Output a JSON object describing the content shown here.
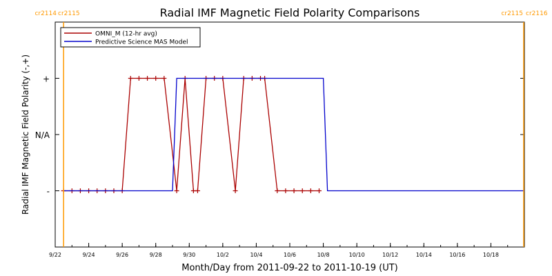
{
  "chart_data": {
    "type": "line",
    "title": "Radial IMF Magnetic Field Polarity Comparisons",
    "xlabel": "Month/Day from 2011-09-22 to 2011-10-19 (UT)",
    "ylabel": "Radial IMF Magnetic Field Polarity (-,+)",
    "x_start": "2011-09-22",
    "x_end": "2011-10-20",
    "y_categories": [
      "-",
      "N/A",
      "+"
    ],
    "ylim": [
      -2,
      2
    ],
    "y_ticks": [
      {
        "value": 1,
        "label": "+"
      },
      {
        "value": 0,
        "label": "N/A"
      },
      {
        "value": -1,
        "label": "-"
      }
    ],
    "x_ticks": [
      {
        "date": "2011-09-22",
        "label": "9/22"
      },
      {
        "date": "2011-09-24",
        "label": "9/24"
      },
      {
        "date": "2011-09-26",
        "label": "9/26"
      },
      {
        "date": "2011-09-28",
        "label": "9/28"
      },
      {
        "date": "2011-09-30",
        "label": "9/30"
      },
      {
        "date": "2011-10-02",
        "label": "10/2"
      },
      {
        "date": "2011-10-04",
        "label": "10/4"
      },
      {
        "date": "2011-10-06",
        "label": "10/6"
      },
      {
        "date": "2011-10-08",
        "label": "10/8"
      },
      {
        "date": "2011-10-10",
        "label": "10/10"
      },
      {
        "date": "2011-10-12",
        "label": "10/12"
      },
      {
        "date": "2011-10-14",
        "label": "10/14"
      },
      {
        "date": "2011-10-16",
        "label": "10/16"
      },
      {
        "date": "2011-10-18",
        "label": "10/18"
      }
    ],
    "carrington_markers": [
      {
        "date": "2011-09-22 12:00",
        "labels": [
          "cr2114",
          "cr2115"
        ],
        "side": "left"
      },
      {
        "date": "2011-10-20 00:00",
        "labels": [
          "cr2115",
          "cr2116"
        ],
        "side": "right"
      }
    ],
    "legend": {
      "placement": "top-left"
    },
    "series": [
      {
        "name": "OMNI_M (12-hr avg)",
        "color": "#aa0000",
        "markers": true,
        "points": [
          [
            "2011-09-22 12:00",
            -1
          ],
          [
            "2011-09-23 00:00",
            -1
          ],
          [
            "2011-09-23 12:00",
            -1
          ],
          [
            "2011-09-24 00:00",
            -1
          ],
          [
            "2011-09-24 12:00",
            -1
          ],
          [
            "2011-09-25 00:00",
            -1
          ],
          [
            "2011-09-25 12:00",
            -1
          ],
          [
            "2011-09-26 00:00",
            -1
          ],
          [
            "2011-09-26 12:00",
            1
          ],
          [
            "2011-09-27 00:00",
            1
          ],
          [
            "2011-09-27 12:00",
            1
          ],
          [
            "2011-09-28 00:00",
            1
          ],
          [
            "2011-09-28 12:00",
            1
          ],
          [
            "2011-09-29 06:00",
            -1
          ],
          [
            "2011-09-29 18:00",
            1
          ],
          [
            "2011-09-30 06:00",
            -1
          ],
          [
            "2011-09-30 12:00",
            -1
          ],
          [
            "2011-10-01 00:00",
            1
          ],
          [
            "2011-10-01 12:00",
            1
          ],
          [
            "2011-10-02 00:00",
            1
          ],
          [
            "2011-10-02 18:00",
            -1
          ],
          [
            "2011-10-03 06:00",
            1
          ],
          [
            "2011-10-03 18:00",
            1
          ],
          [
            "2011-10-04 06:00",
            1
          ],
          [
            "2011-10-04 12:00",
            1
          ],
          [
            "2011-10-05 06:00",
            -1
          ],
          [
            "2011-10-05 18:00",
            -1
          ],
          [
            "2011-10-06 06:00",
            -1
          ],
          [
            "2011-10-06 18:00",
            -1
          ],
          [
            "2011-10-07 06:00",
            -1
          ],
          [
            "2011-10-07 18:00",
            -1
          ]
        ]
      },
      {
        "name": "Predictive Science MAS Model",
        "color": "#0000cc",
        "markers": false,
        "points": [
          [
            "2011-09-22 12:00",
            -1
          ],
          [
            "2011-09-29 00:00",
            -1
          ],
          [
            "2011-09-29 06:00",
            1
          ],
          [
            "2011-10-08 00:00",
            1
          ],
          [
            "2011-10-08 06:00",
            -1
          ],
          [
            "2011-10-20 00:00",
            -1
          ]
        ]
      }
    ]
  }
}
